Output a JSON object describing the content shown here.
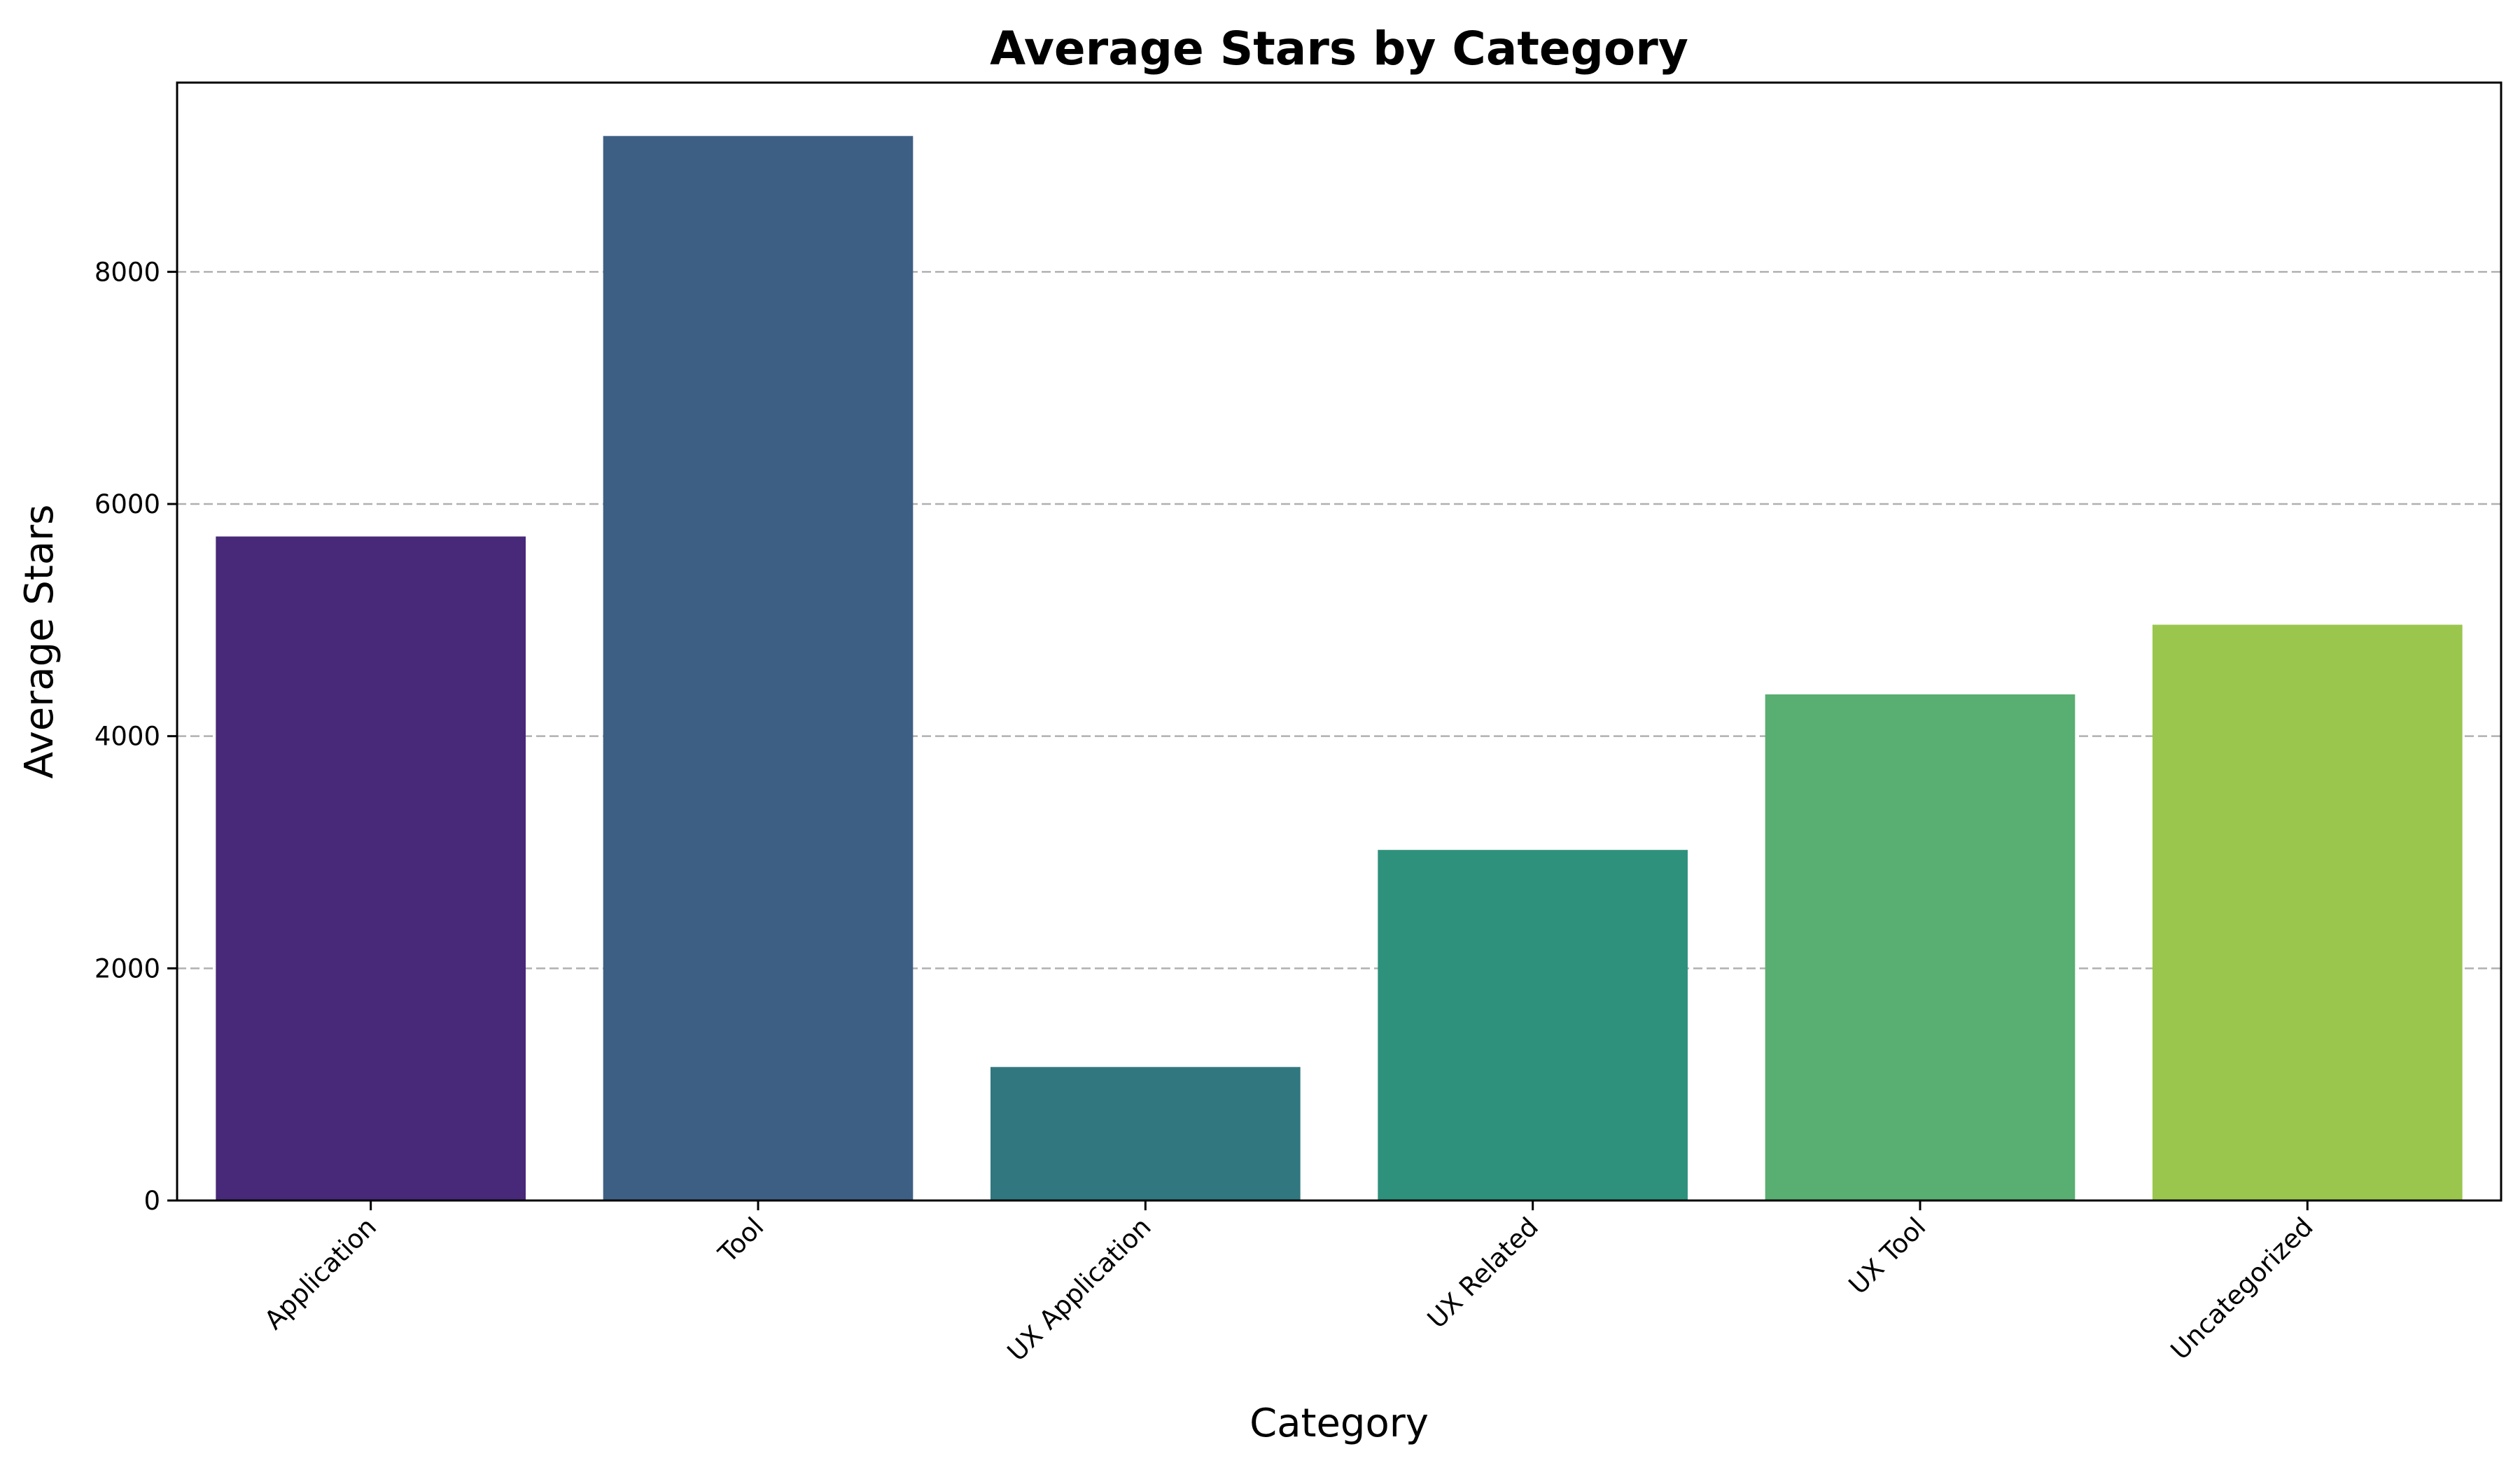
{
  "chart_data": {
    "type": "bar",
    "title": "Average Stars by Category",
    "xlabel": "Category",
    "ylabel": "Average Stars",
    "categories": [
      "Application",
      "Tool",
      "UX Application",
      "UX Related",
      "UX Tool",
      "Uncategorized"
    ],
    "values": [
      5720,
      9170,
      1150,
      3020,
      4360,
      4960
    ],
    "colors": [
      "#482878",
      "#3e5f84",
      "#31777f",
      "#2e917c",
      "#59ae71",
      "#9ac64d"
    ],
    "ylim": [
      0,
      9630
    ],
    "yticks": [
      0,
      2000,
      4000,
      6000,
      8000
    ],
    "grid": "y, dashed",
    "legend": "none"
  }
}
